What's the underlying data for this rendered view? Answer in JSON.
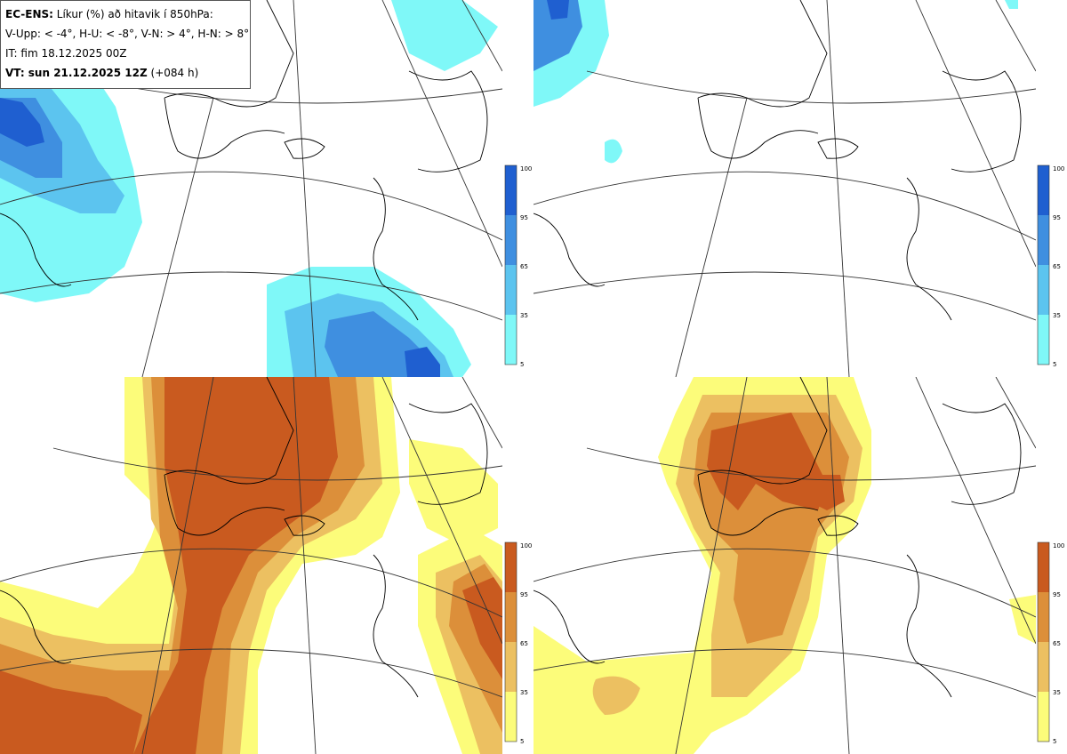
{
  "header": {
    "model_label": "EC-ENS:",
    "title_text": "Líkur (%) að hitavik í 850hPa:",
    "thresholds": "V-Upp: < -4°, H-U: < -8°, V-N: > 4°, H-N: > 8°",
    "init_time": "IT: fim 18.12.2025 00Z",
    "valid_label": "VT: sun 21.12.2025 12Z",
    "lead_time": "(+084 h)"
  },
  "panels": [
    {
      "id": "top-left",
      "variable": "V-Upp",
      "palette": "blue"
    },
    {
      "id": "top-right",
      "variable": "H-U",
      "palette": "blue"
    },
    {
      "id": "bottom-left",
      "variable": "V-N",
      "palette": "orange"
    },
    {
      "id": "bottom-right",
      "variable": "H-N",
      "palette": "orange"
    }
  ],
  "colorbars": {
    "blue": {
      "ticks": [
        "100",
        "95",
        "65",
        "35",
        "5"
      ],
      "colors": [
        "#1f5fd0",
        "#3f8fe0",
        "#5cc4ef",
        "#7ff8f8"
      ]
    },
    "orange": {
      "ticks": [
        "100",
        "95",
        "65",
        "35",
        "5"
      ],
      "colors": [
        "#c95a1f",
        "#dc8f3a",
        "#ecc061",
        "#fcfc7a"
      ]
    }
  }
}
